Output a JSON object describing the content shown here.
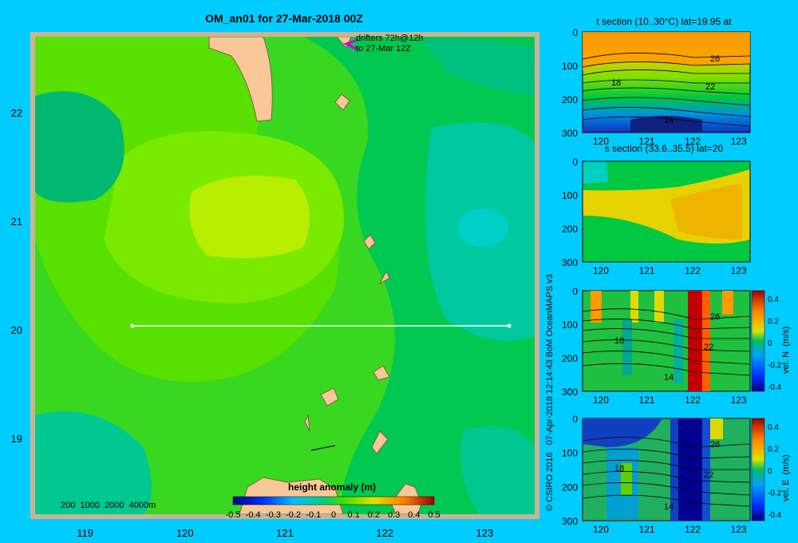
{
  "main_map": {
    "title": "OM_an01 for 27-Mar-2018 00Z",
    "drifters_line1": "drifters 72h@12h",
    "drifters_line2": "to 27-Mar 12Z",
    "depth_legend": "200  1000  2000  4000m",
    "colorbar_title": "height anomaly  (m)",
    "colorbar_ticks": [
      "-0.5",
      "-0.4",
      "-0.3",
      "-0.2",
      "-0.1",
      "0",
      "0.1",
      "0.2",
      "0.3",
      "0.4",
      "0.5"
    ],
    "lat_ticks": [
      "22",
      "21",
      "20",
      "19"
    ],
    "lon_ticks": [
      "119",
      "120",
      "121",
      "122",
      "123"
    ]
  },
  "side_panels": {
    "credit": "© CSIRO 2016   07-Apr-2018 12:14:43 BoM OceanMAPS v3",
    "depth_ticks": [
      "0",
      "100",
      "200",
      "300"
    ],
    "lon_ticks": [
      "120",
      "121",
      "122",
      "123"
    ],
    "panel1_title": "t section (10..30°C) lat=19.95 at",
    "panel2_title": "s section (33.6..35.5) lat=20",
    "contour_labels": {
      "c26": "26",
      "c22": "22",
      "c18": "18",
      "c14": "14"
    },
    "vel_n_label": "vel. N  (m/s)",
    "vel_e_label": "vel. E  (m/s)",
    "vel_ticks": [
      "0.4",
      "0.2",
      "0",
      "-0.2",
      "-0.4"
    ]
  },
  "chart_data": [
    {
      "type": "heatmap",
      "title": "OM_an01 for 27-Mar-2018 00Z",
      "xlabel": "",
      "ylabel": "",
      "xlim": [
        118.5,
        123.5
      ],
      "ylim": [
        18.3,
        22.7
      ],
      "colorbar": {
        "label": "height anomaly (m)",
        "range": [
          -0.5,
          0.5
        ]
      },
      "section_line": {
        "lat": 20,
        "lon_start": 119.5,
        "lon_end": 123.2
      }
    },
    {
      "type": "heatmap",
      "title": "t section (10..30°C) lat=19.95 at",
      "ylim": [
        300,
        0
      ],
      "xlim": [
        119.5,
        123.2
      ],
      "contours": [
        26,
        22,
        18,
        14
      ]
    },
    {
      "type": "heatmap",
      "title": "s section (33.6..35.5) lat=20",
      "ylim": [
        300,
        0
      ],
      "xlim": [
        119.5,
        123.2
      ]
    },
    {
      "type": "heatmap",
      "title": "",
      "colorbar": {
        "label": "vel. N (m/s)",
        "range": [
          -0.4,
          0.4
        ]
      },
      "ylim": [
        300,
        0
      ]
    },
    {
      "type": "heatmap",
      "title": "",
      "colorbar": {
        "label": "vel. E (m/s)",
        "range": [
          -0.4,
          0.4
        ]
      },
      "ylim": [
        300,
        0
      ]
    }
  ]
}
